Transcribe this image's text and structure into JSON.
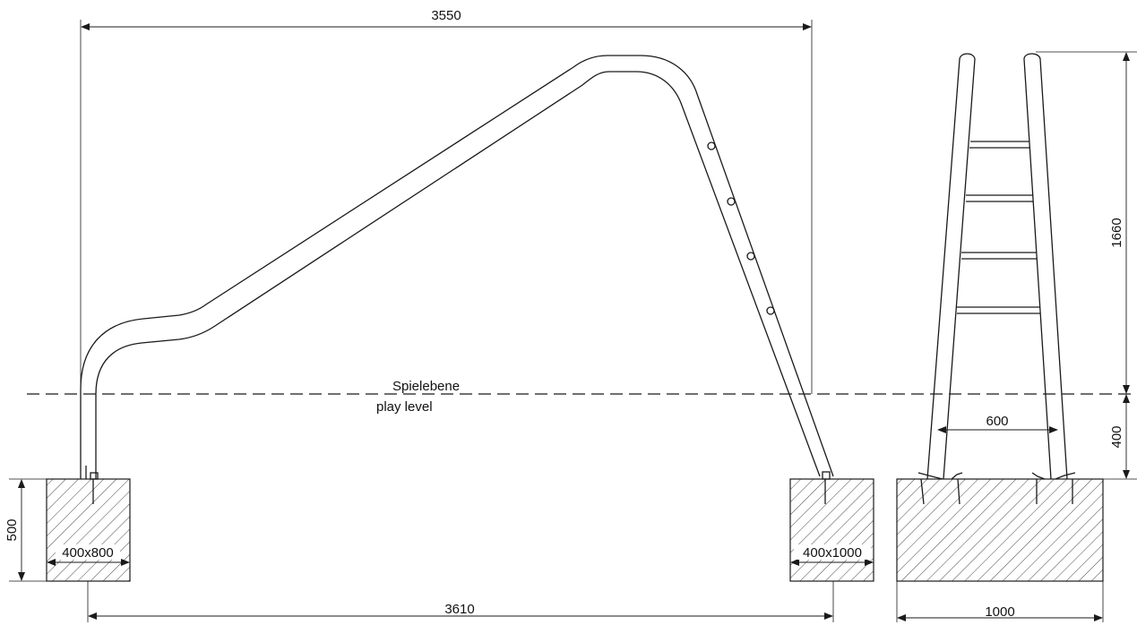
{
  "labels": {
    "width_top": "3550",
    "width_bottom": "3610",
    "height_base": "500",
    "height_upper": "1660",
    "height_lower": "400",
    "rung_span": "600",
    "side_width": "1000",
    "footing_left": "400x800",
    "footing_right": "400x1000",
    "play_level_de": "Spielebene",
    "play_level_en": "play level"
  },
  "colors": {
    "line": "#1a1a1a",
    "background": "#ffffff"
  }
}
